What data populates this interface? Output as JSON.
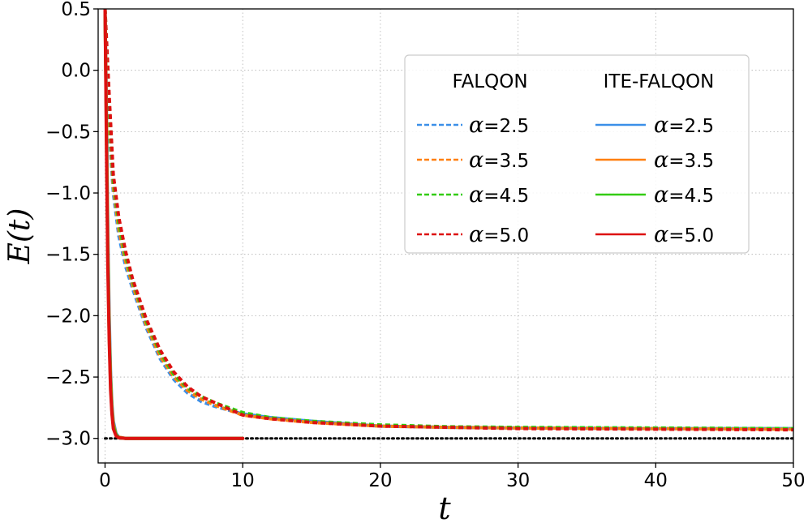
{
  "chart_data": {
    "type": "line",
    "title": "",
    "xlabel": "t",
    "ylabel": "E(t)",
    "xlim": [
      -0.5,
      50
    ],
    "ylim": [
      -3.2,
      0.5
    ],
    "x_ticks": [
      0,
      10,
      20,
      30,
      40,
      50
    ],
    "x_tick_labels": [
      "0",
      "10",
      "20",
      "30",
      "40",
      "50"
    ],
    "y_ticks": [
      0.5,
      0.0,
      -0.5,
      -1.0,
      -1.5,
      -2.0,
      -2.5,
      -3.0
    ],
    "y_tick_labels": [
      "0.5",
      "0.0",
      "−0.5",
      "−1.0",
      "−1.5",
      "−2.0",
      "−2.5",
      "−3.0"
    ],
    "grid": true,
    "reference_line": {
      "y": -3.0,
      "style": "dotted",
      "color": "#000000"
    },
    "legend": {
      "placement": "upper-right",
      "headers": [
        "FALQON",
        "ITE-FALQON"
      ],
      "symbol": "α"
    },
    "series": [
      {
        "name": "α=2.5",
        "group": "FALQON",
        "alpha_value": "=2.5",
        "style": "dashed",
        "color": "#3b8fe8",
        "x": [
          0,
          0.3,
          0.6,
          1,
          1.5,
          2,
          3,
          4,
          5,
          6,
          7,
          8,
          9,
          10,
          12,
          15,
          20,
          25,
          30,
          40,
          50
        ],
        "y": [
          0.5,
          -0.5,
          -1.0,
          -1.35,
          -1.6,
          -1.78,
          -2.1,
          -2.35,
          -2.52,
          -2.63,
          -2.7,
          -2.74,
          -2.77,
          -2.8,
          -2.83,
          -2.86,
          -2.9,
          -2.91,
          -2.915,
          -2.92,
          -2.92
        ]
      },
      {
        "name": "α=3.5",
        "group": "FALQON",
        "alpha_value": "=3.5",
        "style": "dashed",
        "color": "#ff7f0e",
        "x": [
          0,
          0.3,
          0.6,
          1,
          1.5,
          2,
          3,
          4,
          5,
          6,
          7,
          8,
          9,
          10,
          12,
          15,
          20,
          25,
          30,
          40,
          50
        ],
        "y": [
          0.5,
          -0.4,
          -0.95,
          -1.3,
          -1.56,
          -1.75,
          -2.08,
          -2.33,
          -2.5,
          -2.61,
          -2.68,
          -2.73,
          -2.77,
          -2.81,
          -2.84,
          -2.87,
          -2.9,
          -2.91,
          -2.915,
          -2.92,
          -2.925
        ]
      },
      {
        "name": "α=4.5",
        "group": "FALQON",
        "alpha_value": "=4.5",
        "style": "dashed",
        "color": "#33cc11",
        "x": [
          0,
          0.3,
          0.6,
          1,
          1.5,
          2,
          3,
          4,
          5,
          6,
          7,
          8,
          9,
          10,
          12,
          15,
          20,
          25,
          30,
          40,
          50
        ],
        "y": [
          0.5,
          -0.3,
          -0.9,
          -1.25,
          -1.52,
          -1.72,
          -2.05,
          -2.3,
          -2.48,
          -2.59,
          -2.66,
          -2.71,
          -2.75,
          -2.79,
          -2.83,
          -2.86,
          -2.89,
          -2.905,
          -2.91,
          -2.915,
          -2.92
        ]
      },
      {
        "name": "α=5.0",
        "group": "FALQON",
        "alpha_value": "=5.0",
        "style": "dashed",
        "color": "#dd1111",
        "x": [
          0,
          0.3,
          0.6,
          1,
          1.5,
          2,
          3,
          4,
          5,
          6,
          7,
          8,
          9,
          10,
          12,
          15,
          20,
          25,
          30,
          40,
          50
        ],
        "y": [
          0.5,
          -0.2,
          -0.85,
          -1.2,
          -1.48,
          -1.7,
          -2.03,
          -2.28,
          -2.46,
          -2.58,
          -2.66,
          -2.71,
          -2.76,
          -2.81,
          -2.84,
          -2.87,
          -2.9,
          -2.91,
          -2.92,
          -2.925,
          -2.93
        ]
      },
      {
        "name": "α=2.5",
        "group": "ITE-FALQON",
        "alpha_value": "=2.5",
        "style": "solid",
        "color": "#3b8fe8",
        "x": [
          0,
          0.1,
          0.2,
          0.3,
          0.4,
          0.5,
          0.6,
          0.8,
          1.0,
          1.5,
          2,
          5,
          10
        ],
        "y": [
          0.5,
          -0.3,
          -1.3,
          -2.0,
          -2.45,
          -2.72,
          -2.86,
          -2.96,
          -2.99,
          -3.0,
          -3.0,
          -3.0,
          -3.0
        ]
      },
      {
        "name": "α=3.5",
        "group": "ITE-FALQON",
        "alpha_value": "=3.5",
        "style": "solid",
        "color": "#ff7f0e",
        "x": [
          0,
          0.1,
          0.2,
          0.3,
          0.4,
          0.5,
          0.6,
          0.8,
          1.0,
          1.5,
          2,
          5,
          10
        ],
        "y": [
          0.5,
          -0.4,
          -1.4,
          -2.1,
          -2.5,
          -2.75,
          -2.88,
          -2.97,
          -2.99,
          -3.0,
          -3.0,
          -3.0,
          -3.0
        ]
      },
      {
        "name": "α=4.5",
        "group": "ITE-FALQON",
        "alpha_value": "=4.5",
        "style": "solid",
        "color": "#33cc11",
        "x": [
          0,
          0.1,
          0.2,
          0.3,
          0.4,
          0.5,
          0.6,
          0.8,
          1.0,
          1.5,
          2,
          5,
          10
        ],
        "y": [
          0.5,
          -0.5,
          -1.5,
          -2.15,
          -2.55,
          -2.78,
          -2.9,
          -2.97,
          -2.995,
          -3.0,
          -3.0,
          -3.0,
          -3.0
        ]
      },
      {
        "name": "α=5.0",
        "group": "ITE-FALQON",
        "alpha_value": "=5.0",
        "style": "solid",
        "color": "#dd1111",
        "x": [
          0,
          0.1,
          0.2,
          0.3,
          0.4,
          0.5,
          0.6,
          0.8,
          1.0,
          1.5,
          2,
          5,
          10
        ],
        "y": [
          0.5,
          -0.6,
          -1.6,
          -2.2,
          -2.6,
          -2.8,
          -2.92,
          -2.98,
          -2.995,
          -3.0,
          -3.0,
          -3.0,
          -3.0
        ]
      }
    ]
  }
}
